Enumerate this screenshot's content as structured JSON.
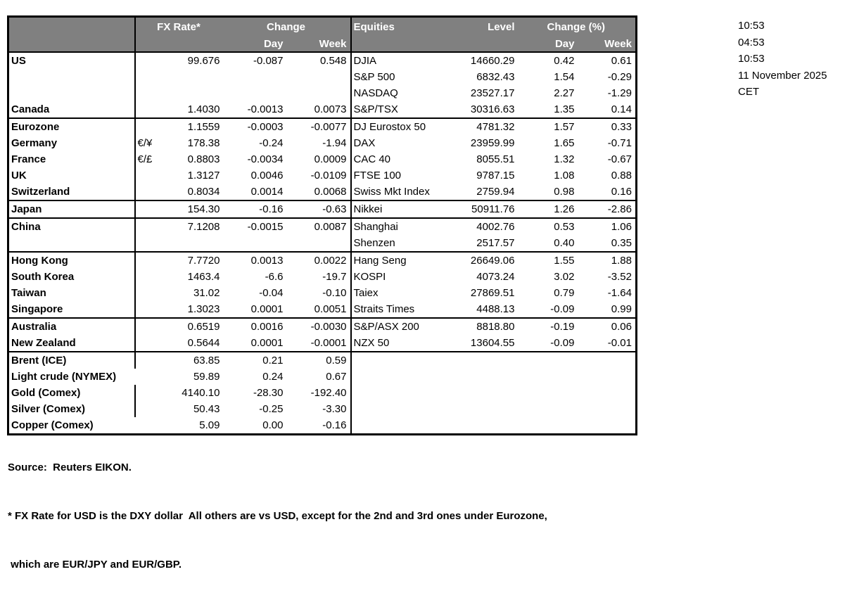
{
  "header": {
    "fx_rate": "FX Rate*",
    "change": "Change",
    "day": "Day",
    "week": "Week",
    "equities": "Equities",
    "level": "Level",
    "change_pct": "Change (%)"
  },
  "colors": {
    "header_bg": "#808080",
    "header_text": "#ffffff",
    "border": "#000000"
  },
  "rows": [
    {
      "fx": {
        "label": "US",
        "sym": "",
        "rate": "99.676",
        "day": "-0.087",
        "week": "0.548"
      },
      "eq": {
        "label": "DJIA",
        "level": "14660.29",
        "day": "0.42",
        "week": "0.61"
      }
    },
    {
      "fx": {
        "label": "",
        "sym": "",
        "rate": "",
        "day": "",
        "week": ""
      },
      "eq": {
        "label": "S&P 500",
        "level": "6832.43",
        "day": "1.54",
        "week": "-0.29"
      }
    },
    {
      "fx": {
        "label": "",
        "sym": "",
        "rate": "",
        "day": "",
        "week": ""
      },
      "eq": {
        "label": "NASDAQ",
        "level": "23527.17",
        "day": "2.27",
        "week": "-1.29"
      }
    },
    {
      "fx": {
        "label": "Canada",
        "sym": "",
        "rate": "1.4030",
        "day": "-0.0013",
        "week": "0.0073"
      },
      "eq": {
        "label": "S&P/TSX",
        "level": "30316.63",
        "day": "1.35",
        "week": "0.14"
      }
    },
    {
      "group_start": true,
      "fx": {
        "label": "Eurozone",
        "sym": "",
        "rate": "1.1559",
        "day": "-0.0003",
        "week": "-0.0077"
      },
      "eq": {
        "label": "DJ Eurostox 50",
        "level": "4781.32",
        "day": "1.57",
        "week": "0.33"
      }
    },
    {
      "fx": {
        "label": "Germany",
        "indent": true,
        "sym": "€/¥",
        "rate": "178.38",
        "day": "-0.24",
        "week": "-1.94"
      },
      "eq": {
        "label": "DAX",
        "level": "23959.99",
        "day": "1.65",
        "week": "-0.71"
      }
    },
    {
      "fx": {
        "label": "France",
        "indent": true,
        "sym": "€/£",
        "rate": "0.8803",
        "day": "-0.0034",
        "week": "0.0009"
      },
      "eq": {
        "label": "CAC 40",
        "level": "8055.51",
        "day": "1.32",
        "week": "-0.67"
      }
    },
    {
      "fx": {
        "label": "UK",
        "sym": "",
        "rate": "1.3127",
        "day": "0.0046",
        "week": "-0.0109"
      },
      "eq": {
        "label": "FTSE 100",
        "level": "9787.15",
        "day": "1.08",
        "week": "0.88"
      }
    },
    {
      "fx": {
        "label": "Switzerland",
        "sym": "",
        "rate": "0.8034",
        "day": "0.0014",
        "week": "0.0068"
      },
      "eq": {
        "label": "Swiss Mkt Index",
        "level": "2759.94",
        "day": "0.98",
        "week": "0.16"
      }
    },
    {
      "group_start": true,
      "fx": {
        "label": "Japan",
        "sym": "",
        "rate": "154.30",
        "day": "-0.16",
        "week": "-0.63"
      },
      "eq": {
        "label": "Nikkei",
        "level": "50911.76",
        "day": "1.26",
        "week": "-2.86"
      }
    },
    {
      "group_start": true,
      "fx": {
        "label": "China",
        "sym": "",
        "rate": "7.1208",
        "day": "-0.0015",
        "week": "0.0087"
      },
      "eq": {
        "label": "Shanghai",
        "level": "4002.76",
        "day": "0.53",
        "week": "1.06"
      }
    },
    {
      "fx": {
        "label": "",
        "sym": "",
        "rate": "",
        "day": "",
        "week": ""
      },
      "eq": {
        "label": "Shenzen",
        "level": "2517.57",
        "day": "0.40",
        "week": "0.35"
      }
    },
    {
      "group_start": true,
      "fx": {
        "label": "Hong Kong",
        "sym": "",
        "rate": "7.7720",
        "day": "0.0013",
        "week": "0.0022"
      },
      "eq": {
        "label": "Hang Seng",
        "level": "26649.06",
        "day": "1.55",
        "week": "1.88"
      }
    },
    {
      "fx": {
        "label": "South Korea",
        "sym": "",
        "rate": "1463.4",
        "day": "-6.6",
        "week": "-19.7"
      },
      "eq": {
        "label": "KOSPI",
        "level": "4073.24",
        "day": "3.02",
        "week": "-3.52"
      }
    },
    {
      "fx": {
        "label": "Taiwan",
        "sym": "",
        "rate": "31.02",
        "day": "-0.04",
        "week": "-0.10"
      },
      "eq": {
        "label": "Taiex",
        "level": "27869.51",
        "day": "0.79",
        "week": "-1.64"
      }
    },
    {
      "fx": {
        "label": "Singapore",
        "sym": "",
        "rate": "1.3023",
        "day": "0.0001",
        "week": "0.0051"
      },
      "eq": {
        "label": "Straits Times",
        "level": "4488.13",
        "day": "-0.09",
        "week": "0.99"
      }
    },
    {
      "group_start": true,
      "fx": {
        "label": "Australia",
        "sym": "",
        "rate": "0.6519",
        "day": "0.0016",
        "week": "-0.0030"
      },
      "eq": {
        "label": "S&P/ASX  200",
        "level": "8818.80",
        "day": "-0.19",
        "week": "0.06"
      }
    },
    {
      "fx": {
        "label": "New Zealand",
        "sym": "",
        "rate": "0.5644",
        "day": "0.0001",
        "week": "-0.0001"
      },
      "eq": {
        "label": "NZX 50",
        "level": "13604.55",
        "day": "-0.09",
        "week": "-0.01"
      }
    },
    {
      "group_start": true,
      "fx": {
        "label": "Brent (ICE)",
        "sym": "",
        "rate": "63.85",
        "day": "0.21",
        "week": "0.59"
      },
      "eq": {
        "label": "",
        "level": "",
        "day": "",
        "week": ""
      }
    },
    {
      "fx": {
        "label": "Light crude (NYMEX)",
        "merge": true,
        "rate": "59.89",
        "day": "0.24",
        "week": "0.67"
      },
      "eq": {
        "label": "",
        "level": "",
        "day": "",
        "week": ""
      }
    },
    {
      "fx": {
        "label": "Gold (Comex)",
        "sym": "",
        "rate": "4140.10",
        "day": "-28.30",
        "week": "-192.40"
      },
      "eq": {
        "label": "",
        "level": "",
        "day": "",
        "week": ""
      }
    },
    {
      "fx": {
        "label": "Silver (Comex)",
        "sym": "",
        "rate": "50.43",
        "day": "-0.25",
        "week": "-3.30"
      },
      "eq": {
        "label": "",
        "level": "",
        "day": "",
        "week": ""
      }
    },
    {
      "fx": {
        "label": "Copper (Comex)",
        "merge": true,
        "rate": "5.09",
        "day": "0.00",
        "week": "-0.16"
      },
      "eq": {
        "label": "",
        "level": "",
        "day": "",
        "week": ""
      }
    }
  ],
  "sidebar": {
    "lines": [
      "10:53",
      "04:53",
      "10:53",
      "11 November 2025",
      "CET"
    ]
  },
  "footer": {
    "source": "Source:  Reuters EIKON.",
    "note1": "* FX Rate for USD is the DXY dollar  All others are vs USD, except for the 2nd and 3rd ones under Eurozone,",
    "note2": " which are EUR/JPY and EUR/GBP."
  }
}
